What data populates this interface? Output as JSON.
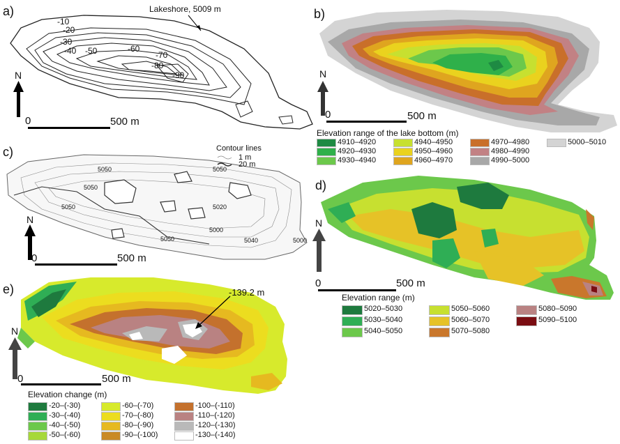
{
  "panels": {
    "a": {
      "label": "a)",
      "lakeshore": "Lakeshore, 5009 m",
      "contours": [
        "-10",
        "-20",
        "-30",
        "-40",
        "-50",
        "-60",
        "-70",
        "-80",
        "-90"
      ],
      "scale": "500 m",
      "scale_zero": "0",
      "north": "N"
    },
    "b": {
      "label": "b)",
      "scale": "500 m",
      "scale_zero": "0",
      "north": "N",
      "legend_title": "Elevation range of the lake bottom (m)",
      "legend": [
        {
          "label": "4910–4920",
          "color": "#1e8a43"
        },
        {
          "label": "4920–4930",
          "color": "#2fb04a"
        },
        {
          "label": "4930–4940",
          "color": "#6cc84b"
        },
        {
          "label": "4940–4950",
          "color": "#c7e030"
        },
        {
          "label": "4950–4960",
          "color": "#ead21e"
        },
        {
          "label": "4960–4970",
          "color": "#dfa51f"
        },
        {
          "label": "4970–4980",
          "color": "#c96f2a"
        },
        {
          "label": "4980–4990",
          "color": "#c28184"
        },
        {
          "label": "4990–5000",
          "color": "#a8a8a8"
        },
        {
          "label": "5000–5010",
          "color": "#d4d4d4"
        }
      ]
    },
    "c": {
      "label": "c)",
      "legend_title": "Contour lines",
      "legend": [
        "1 m",
        "20 m"
      ],
      "scale": "500 m",
      "scale_zero": "0",
      "north": "N",
      "contour_labels": [
        "5050",
        "5050",
        "5050",
        "5050",
        "5020",
        "5000",
        "5050",
        "5040",
        "5000"
      ]
    },
    "d": {
      "label": "d)",
      "scale": "500 m",
      "scale_zero": "0",
      "north": "N",
      "legend_title": "Elevation range (m)",
      "legend": [
        {
          "label": "5020–5030",
          "color": "#1e7a3e"
        },
        {
          "label": "5030–5040",
          "color": "#2fae55"
        },
        {
          "label": "5040–5050",
          "color": "#6cc84b"
        },
        {
          "label": "5050–5060",
          "color": "#c7e030"
        },
        {
          "label": "5060–5070",
          "color": "#e6c227"
        },
        {
          "label": "5070–5080",
          "color": "#c9772c"
        },
        {
          "label": "5080–5090",
          "color": "#b98282"
        },
        {
          "label": "5090–5100",
          "color": "#7a0d12"
        }
      ]
    },
    "e": {
      "label": "e)",
      "annotation": "-139.2 m",
      "scale": "500 m",
      "scale_zero": "0",
      "north": "N",
      "legend_title": "Elevation change (m)",
      "legend": [
        {
          "label": "-20–(-30)",
          "color": "#1e7a3e"
        },
        {
          "label": "-30–(-40)",
          "color": "#2fae55"
        },
        {
          "label": "-40–(-50)",
          "color": "#6cc84b"
        },
        {
          "label": "-50–(-60)",
          "color": "#a6d83a"
        },
        {
          "label": "-60–(-70)",
          "color": "#d7ea2c"
        },
        {
          "label": "-70–(-80)",
          "color": "#ecdd1f"
        },
        {
          "label": "-80–(-90)",
          "color": "#e6b920"
        },
        {
          "label": "-90–(-100)",
          "color": "#c98a25"
        },
        {
          "label": "-100–(-110)",
          "color": "#c4712d"
        },
        {
          "label": "-110–(-120)",
          "color": "#b98282"
        },
        {
          "label": "-120–(-130)",
          "color": "#b9b9b9"
        },
        {
          "label": "-130–(-140)",
          "color": "#ffffff"
        }
      ]
    }
  }
}
